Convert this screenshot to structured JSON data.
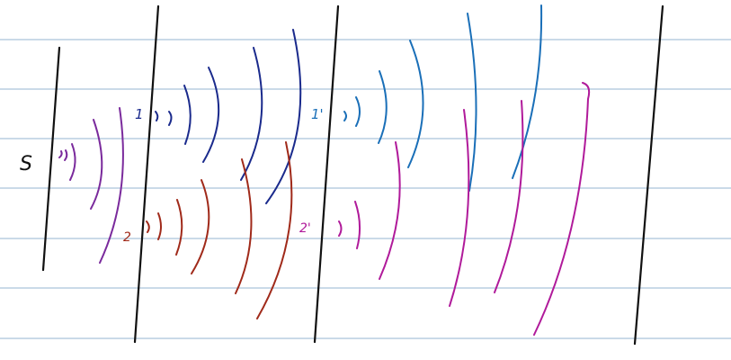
{
  "labels": {
    "source": "S",
    "slit_1": "1",
    "slit_1_prime": "1'",
    "slit_2": "2",
    "slit_2_prime": "2'"
  },
  "colors": {
    "paper": "#ffffff",
    "ruled_line": "#b8cde0",
    "barrier": "#111111",
    "source_wave": "#7a2a9c",
    "wave_from_slit_1": "#1a2a8c",
    "wave_from_slit_1_prime": "#1a6fb8",
    "wave_from_slit_2": "#a02a1a",
    "wave_from_slit_2_prime": "#b01a9a",
    "label_source": "#111111",
    "label_1": "#1a2a8c",
    "label_1_prime": "#1a6fb8",
    "label_2": "#a02a1a",
    "label_2_prime": "#b01a9a"
  }
}
